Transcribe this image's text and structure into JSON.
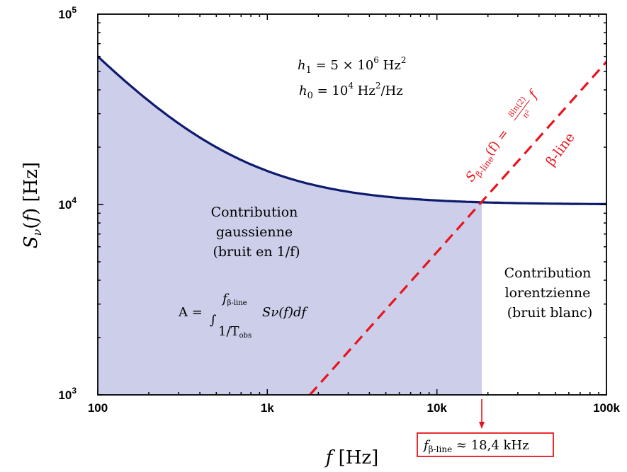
{
  "chart_data": {
    "type": "line",
    "x_scale": "log",
    "y_scale": "log",
    "xlim": [
      100,
      100000
    ],
    "ylim": [
      1000,
      100000
    ],
    "x_ticks": [
      {
        "value": 100,
        "label": "100"
      },
      {
        "value": 1000,
        "label": "1k"
      },
      {
        "value": 10000,
        "label": "10k"
      },
      {
        "value": 100000,
        "label": "100k"
      }
    ],
    "y_ticks": [
      {
        "value": 1000,
        "label_base": "10",
        "label_exp": "3"
      },
      {
        "value": 10000,
        "label_base": "10",
        "label_exp": "4"
      },
      {
        "value": 100000,
        "label_base": "10",
        "label_exp": "5"
      }
    ],
    "xlabel": "f  [Hz]",
    "ylabel": "Sν(f)  [Hz]",
    "series": [
      {
        "name": "",
        "style": "solid",
        "color": "#0e1a6e",
        "h1": 5000000,
        "h0": 10000,
        "x": [
          100,
          150,
          200,
          300,
          500,
          700,
          1000,
          1500,
          2000,
          3000,
          5000,
          7000,
          10000,
          15000,
          20000,
          30000,
          50000,
          70000,
          100000
        ],
        "y": [
          60000,
          43333,
          35000,
          26667,
          20000,
          17143,
          15000,
          13333,
          12500,
          11667,
          11000,
          10714,
          10500,
          10333,
          10250,
          10167,
          10100,
          10071,
          10050
        ]
      },
      {
        "name": "",
        "style": "dashed",
        "color": "#e8141c",
        "slope": 0.5619,
        "x": [
          1780,
          100000
        ],
        "y": [
          1000,
          56190
        ]
      }
    ],
    "shaded_region": {
      "x_from": 100,
      "x_to": 18400,
      "color": "#ccceea"
    },
    "crossing_marker_x": 18400
  },
  "annotations": {
    "h1_lhs": "h",
    "h1_sub": "1",
    "h1_eq": " = 5 × 10",
    "h1_exp": "6",
    "h1_unit": " Hz",
    "h1_unit_exp": "2",
    "h0_lhs": "h",
    "h0_sub": "0",
    "h0_eq": " = 10",
    "h0_exp": "4",
    "h0_unit": " Hz",
    "h0_unit_exp": "2",
    "h0_unit_tail": "/Hz",
    "gauss_line1": "Contribution",
    "gauss_line2": "gaussienne",
    "gauss_line3": "(bruit en 1/f)",
    "lorentz_line1": "Contribution",
    "lorentz_line2": "lorentzienne",
    "lorentz_line3": "(bruit blanc)",
    "integral_lhs": "A =",
    "integral_sign": "∫",
    "integral_upper": "f",
    "integral_upper_sub": "β-line",
    "integral_lower": "1/T",
    "integral_lower_sub": "obs",
    "integral_body": "Sν(f)df",
    "beta_formula_lhs": "S",
    "beta_formula_sub": "β-line",
    "beta_formula_mid": "(f) =",
    "beta_formula_num": "8ln(2)",
    "beta_formula_den": "π²",
    "beta_formula_rhs": "f",
    "beta_label": "β-line",
    "freq_box_lhs": "f",
    "freq_box_sub": "β-line",
    "freq_box_rhs": " ≈ 18,4 kHz"
  }
}
